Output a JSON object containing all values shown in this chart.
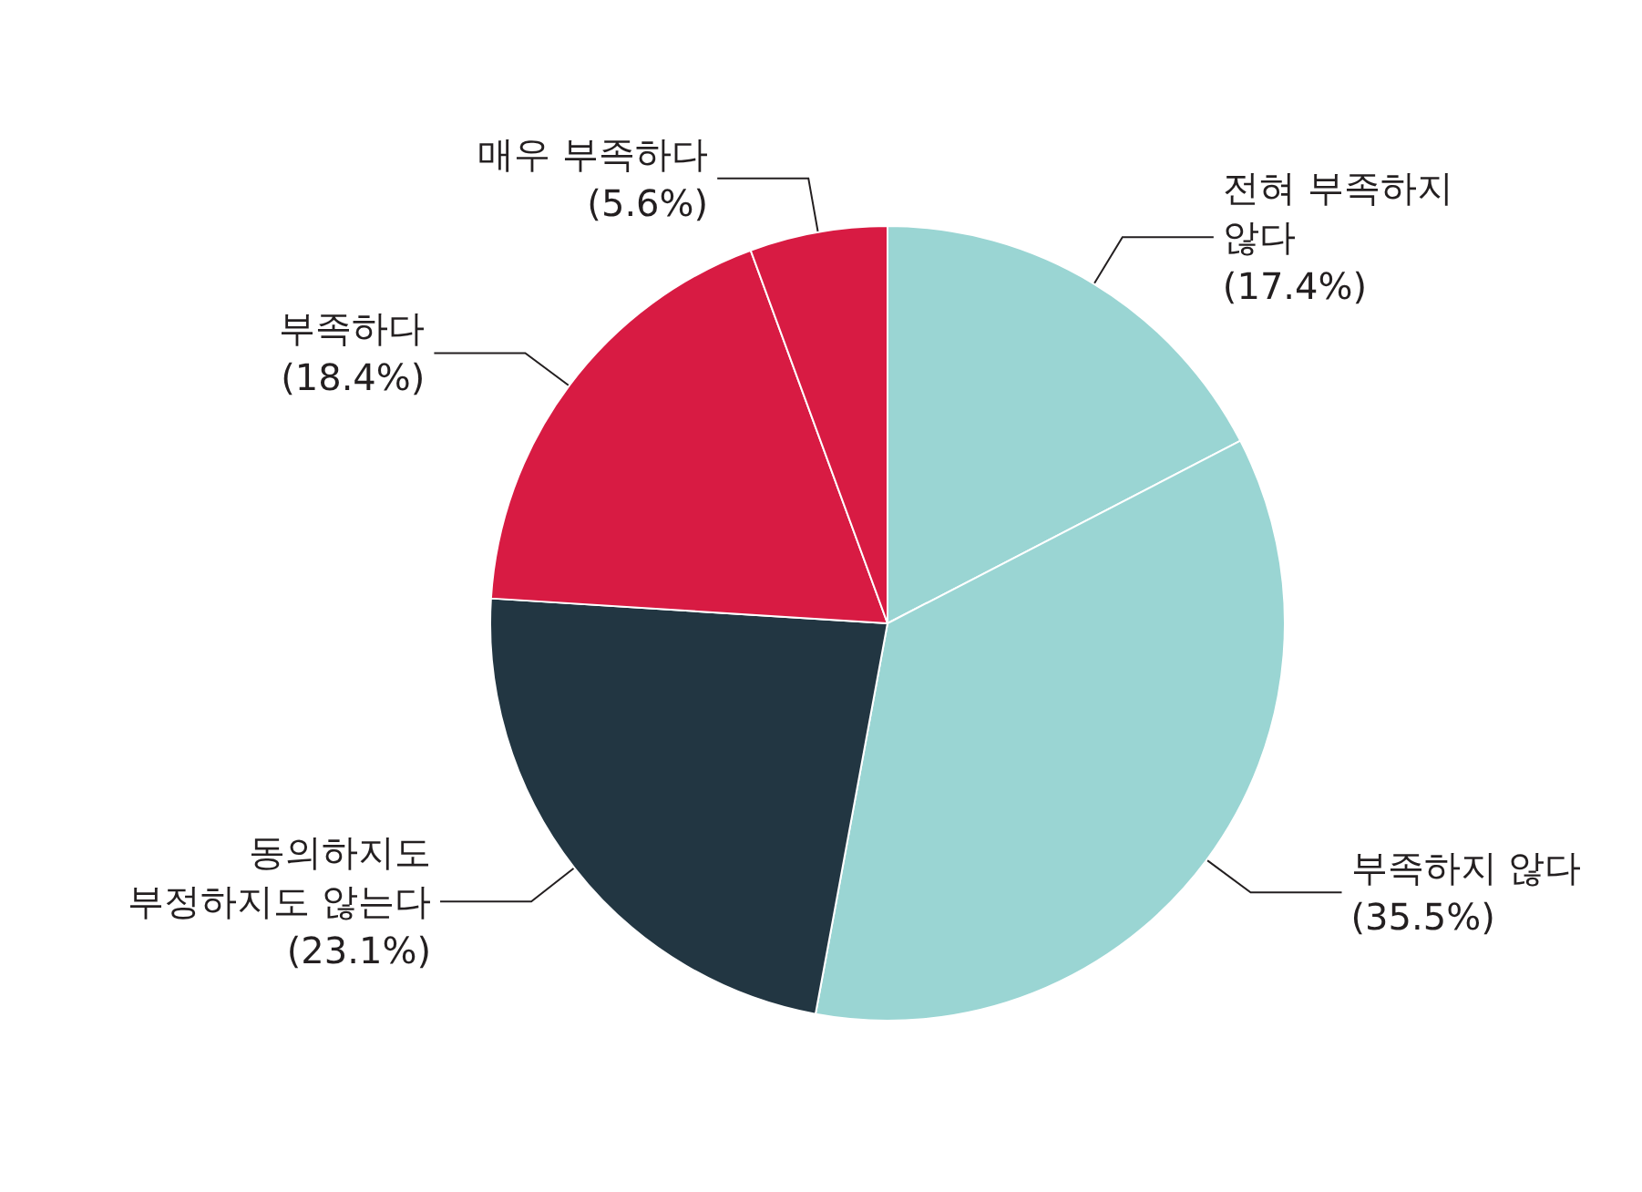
{
  "chart_data": {
    "type": "pie",
    "categories": [
      "전혀 부족하지\n않다",
      "부족하지 않다",
      "동의하지도\n부정하지도 않는다",
      "부족하다",
      "매우 부족하다"
    ],
    "values": [
      17.4,
      35.5,
      23.1,
      18.4,
      5.6
    ],
    "colors": [
      "#9ad5d3",
      "#9ad5d3",
      "#223642",
      "#d81b43",
      "#d81b43"
    ],
    "value_labels": [
      "(17.4%)",
      "(35.5%)",
      "(23.1%)",
      "(18.4%)",
      "(5.6%)"
    ],
    "legend": false
  }
}
